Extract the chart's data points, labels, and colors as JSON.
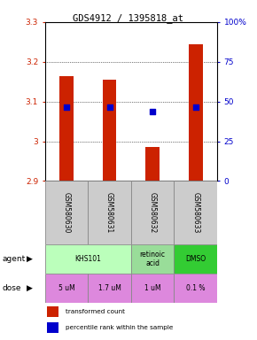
{
  "title": "GDS4912 / 1395818_at",
  "samples": [
    "GSM580630",
    "GSM580631",
    "GSM580632",
    "GSM580633"
  ],
  "bar_values": [
    3.165,
    3.155,
    2.985,
    3.245
  ],
  "bar_bottom": 2.9,
  "percentile_values": [
    3.085,
    3.085,
    3.075,
    3.085
  ],
  "ylim": [
    2.9,
    3.3
  ],
  "yticks_left": [
    2.9,
    3.0,
    3.1,
    3.2,
    3.3
  ],
  "yticks_left_labels": [
    "2.9",
    "3",
    "3.1",
    "3.2",
    "3.3"
  ],
  "yticks_right": [
    0,
    25,
    50,
    75,
    100
  ],
  "yticks_right_labels": [
    "0",
    "25",
    "50",
    "75",
    "100%"
  ],
  "bar_color": "#cc2200",
  "dot_color": "#0000cc",
  "bg_color": "#ffffff",
  "plot_bg": "#ffffff",
  "left_label_color": "#cc2200",
  "right_label_color": "#0000cc",
  "agent_groups": [
    {
      "label": "KHS101",
      "start": 0,
      "end": 1,
      "color": "#bbffbb"
    },
    {
      "label": "retinoic\nacid",
      "start": 2,
      "end": 2,
      "color": "#99dd99"
    },
    {
      "label": "DMSO",
      "start": 3,
      "end": 3,
      "color": "#33cc33"
    }
  ],
  "dose_labels": [
    "5 uM",
    "1.7 uM",
    "1 uM",
    "0.1 %"
  ],
  "dose_color": "#dd88dd",
  "sample_bg": "#cccccc"
}
